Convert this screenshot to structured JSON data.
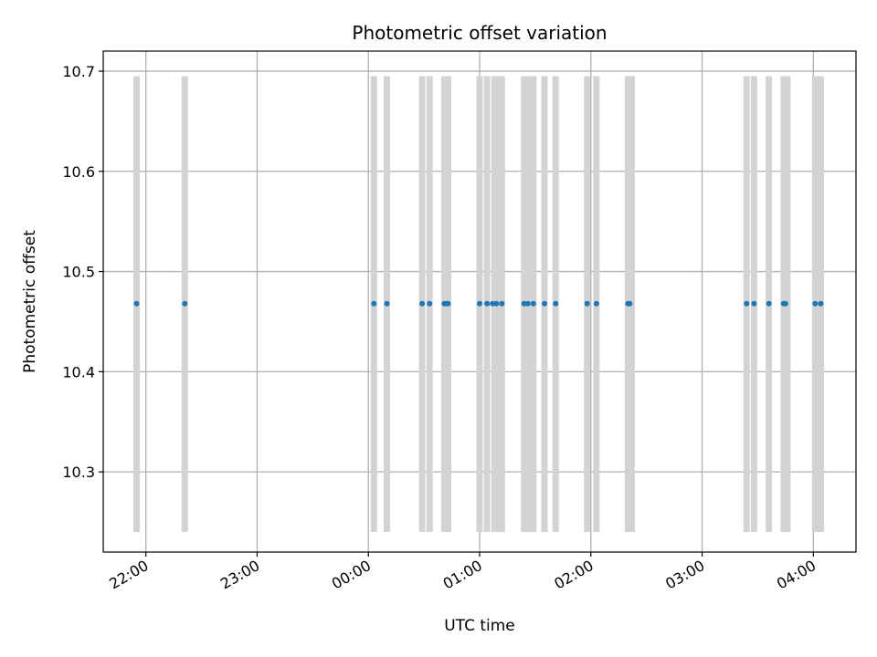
{
  "chart_data": {
    "type": "scatter",
    "title": "Photometric offset variation",
    "xlabel": "UTC time",
    "ylabel": "Photometric offset",
    "x_axis": "UTC time of day (hours; values past 24 fall after midnight)",
    "xlim": [
      "21:37",
      "04:23"
    ],
    "ylim": [
      10.22,
      10.72
    ],
    "grid": true,
    "x_ticks": [
      "22:00",
      "23:00",
      "00:00",
      "01:00",
      "02:00",
      "03:00",
      "04:00"
    ],
    "y_ticks": [
      "10.3",
      "10.4",
      "10.5",
      "10.6",
      "10.7"
    ],
    "colors": {
      "points": "#1f77b4",
      "bands": "#d3d3d3",
      "grid": "#b0b0b0"
    },
    "y_value": 10.468,
    "band_range": [
      10.24,
      10.695
    ],
    "points": [
      "21:55",
      "22:21",
      "00:03",
      "00:10",
      "00:29",
      "00:33",
      "00:41",
      "00:42",
      "00:43",
      "01:00",
      "01:04",
      "01:07",
      "01:09",
      "01:12",
      "01:24",
      "01:26",
      "01:29",
      "01:35",
      "01:41",
      "01:58",
      "02:03",
      "02:20",
      "02:21",
      "03:24",
      "03:28",
      "03:36",
      "03:44",
      "03:45",
      "04:01",
      "04:04"
    ],
    "bands": [
      "21:55",
      "22:21",
      "00:03",
      "00:10",
      "00:29",
      "00:33",
      "00:41",
      "00:43",
      "01:00",
      "01:04",
      "01:08",
      "01:10",
      "01:12",
      "01:24",
      "01:27",
      "01:29",
      "01:35",
      "01:41",
      "01:58",
      "02:03",
      "02:20",
      "02:22",
      "03:24",
      "03:28",
      "03:36",
      "03:44",
      "03:46",
      "04:01",
      "04:04"
    ]
  }
}
